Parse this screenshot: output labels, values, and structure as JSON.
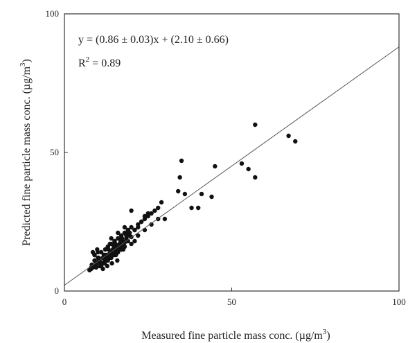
{
  "chart_data": {
    "type": "scatter",
    "xlabel": "Measured fine particle mass conc. (µg/m",
    "xlabel_sup": "3",
    "xlabel_end": ")",
    "ylabel": "Predicted fine particle mass conc. (µg/m",
    "ylabel_sup": "3",
    "ylabel_end": ")",
    "xlim": [
      0,
      100
    ],
    "ylim": [
      0,
      100
    ],
    "xticks": [
      "0",
      "50",
      "100"
    ],
    "yticks": [
      "0",
      "50",
      "100"
    ],
    "grid": false,
    "annotations": {
      "equation": "y = (0.86 ± 0.03)x + (2.10 ± 0.66)",
      "r2_prefix": "R",
      "r2_sup": "2",
      "r2_value": " = 0.89"
    },
    "fit": {
      "slope": 0.86,
      "intercept": 2.1
    },
    "x": [
      7.5,
      8,
      8.5,
      8.2,
      9,
      9.5,
      10,
      10.5,
      11,
      11.5,
      12,
      12.5,
      13,
      13.5,
      14,
      14.5,
      15,
      15.5,
      16,
      16.5,
      17,
      17.5,
      18,
      18.5,
      19,
      19.5,
      20,
      9,
      10,
      11,
      12,
      13,
      14,
      15,
      16,
      17,
      18,
      9.5,
      10.5,
      11.5,
      12.5,
      13.5,
      14.5,
      15.5,
      16.5,
      8.5,
      9,
      9.8,
      10.2,
      11,
      11.8,
      12.2,
      13,
      14,
      15,
      16,
      17,
      18,
      19,
      20,
      21,
      22,
      23,
      24,
      25,
      26,
      8,
      9.2,
      10.8,
      12.5,
      13.2,
      14.8,
      15.2,
      16.8,
      17.2,
      18.5,
      19.5,
      21,
      22,
      23,
      24,
      25,
      27,
      28,
      29,
      30,
      12,
      13,
      14,
      16,
      17,
      18,
      20,
      21,
      22,
      24,
      26,
      28,
      34,
      34.5,
      35,
      36,
      38,
      40,
      41,
      44,
      45,
      53,
      55,
      57,
      57,
      67,
      69,
      11,
      12,
      10,
      9,
      13,
      15,
      17,
      19,
      14,
      16,
      18,
      20,
      11.5,
      12.8,
      14.2,
      15.8,
      13.6,
      15.4,
      17.6,
      19.2
    ],
    "y": [
      7.5,
      8,
      8.5,
      9.5,
      9,
      10,
      10.5,
      11,
      10,
      12,
      11.5,
      13,
      12,
      13.5,
      14,
      15,
      14.5,
      15.5,
      16,
      17,
      16.5,
      18,
      17.5,
      19,
      18,
      20,
      19.5,
      11,
      12,
      9,
      10,
      11,
      12,
      13,
      14,
      15,
      16,
      8.5,
      9,
      10,
      11,
      12,
      13,
      14,
      15,
      14,
      13,
      15,
      12,
      14,
      13,
      15,
      16,
      17,
      18,
      19,
      20,
      21,
      22,
      23,
      22,
      24,
      25,
      26,
      27,
      28,
      8.5,
      9,
      10,
      12,
      15,
      16,
      17,
      18,
      19,
      20,
      21,
      22,
      23,
      25,
      27,
      28,
      29,
      30,
      32,
      26,
      11,
      12,
      13,
      14,
      15,
      16,
      17,
      18,
      20,
      22,
      24,
      26,
      36,
      41,
      47,
      35,
      30,
      30,
      35,
      34,
      45,
      46,
      44,
      60,
      41,
      56,
      54,
      10,
      13,
      14,
      13,
      16,
      18,
      20,
      22,
      19,
      21,
      23,
      29,
      8,
      9,
      10,
      11,
      17,
      13,
      15,
      21
    ]
  }
}
